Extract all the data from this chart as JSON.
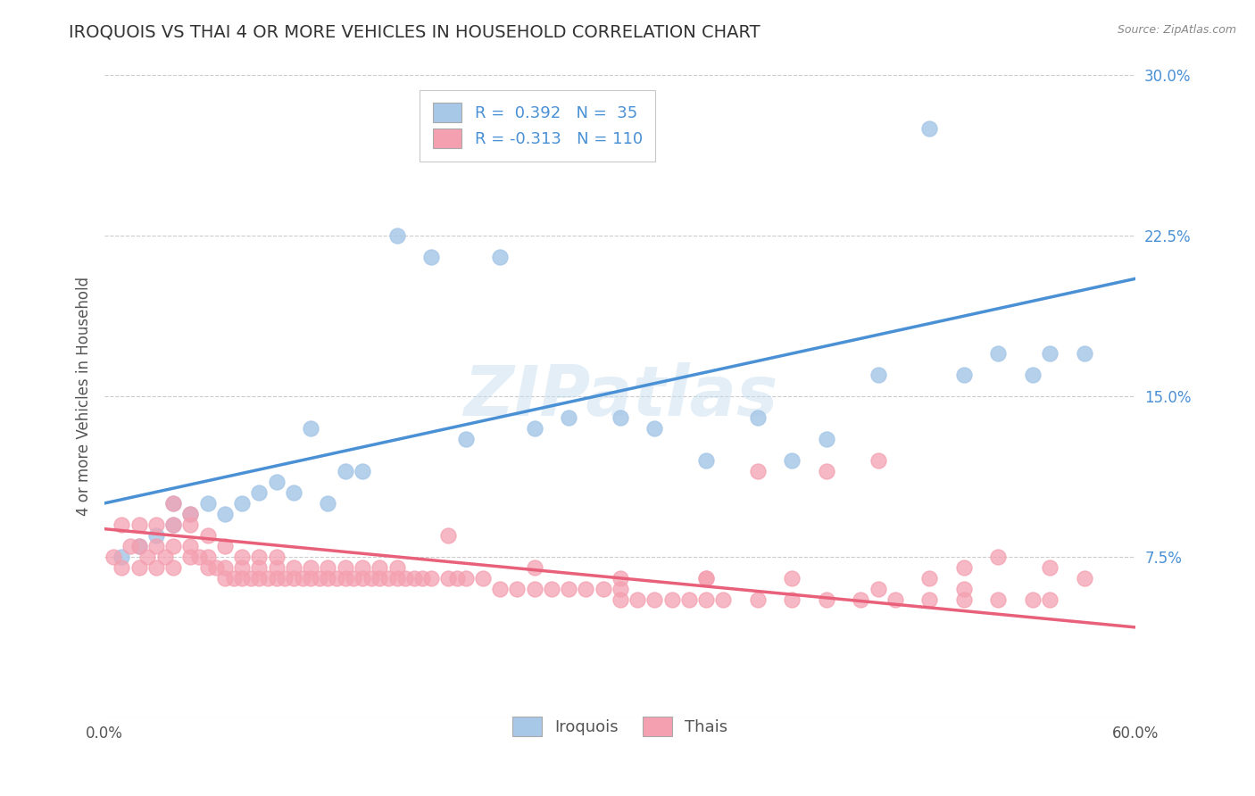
{
  "title": "IROQUOIS VS THAI 4 OR MORE VEHICLES IN HOUSEHOLD CORRELATION CHART",
  "source_text": "Source: ZipAtlas.com",
  "ylabel_text": "4 or more Vehicles in Household",
  "legend_label1": "Iroquois",
  "legend_label2": "Thais",
  "r1": 0.392,
  "n1": 35,
  "r2": -0.313,
  "n2": 110,
  "xlim": [
    0.0,
    0.6
  ],
  "ylim": [
    0.0,
    0.3
  ],
  "xticks": [
    0.0,
    0.1,
    0.2,
    0.3,
    0.4,
    0.5,
    0.6
  ],
  "yticks": [
    0.0,
    0.075,
    0.15,
    0.225,
    0.3
  ],
  "xticklabels": [
    "0.0%",
    "",
    "",
    "",
    "",
    "",
    "60.0%"
  ],
  "yticklabels_right": [
    "",
    "7.5%",
    "15.0%",
    "22.5%",
    "30.0%"
  ],
  "color_iroquois": "#a8c8e8",
  "color_thais": "#f4a0b0",
  "color_line1": "#4a90d4",
  "color_line2": "#e8607a",
  "watermark": "ZIPatlas",
  "line1_x0": 0.0,
  "line1_y0": 0.1,
  "line1_x1": 0.6,
  "line1_y1": 0.205,
  "line2_x0": 0.0,
  "line2_y0": 0.088,
  "line2_x1": 0.6,
  "line2_y1": 0.042,
  "iro_x": [
    0.01,
    0.02,
    0.03,
    0.04,
    0.04,
    0.05,
    0.06,
    0.07,
    0.08,
    0.09,
    0.1,
    0.11,
    0.12,
    0.13,
    0.14,
    0.15,
    0.17,
    0.19,
    0.21,
    0.23,
    0.25,
    0.27,
    0.3,
    0.32,
    0.35,
    0.38,
    0.4,
    0.42,
    0.45,
    0.48,
    0.5,
    0.52,
    0.54,
    0.55,
    0.57
  ],
  "iro_y": [
    0.075,
    0.08,
    0.085,
    0.09,
    0.1,
    0.095,
    0.1,
    0.095,
    0.1,
    0.105,
    0.11,
    0.105,
    0.135,
    0.1,
    0.115,
    0.115,
    0.225,
    0.215,
    0.13,
    0.215,
    0.135,
    0.14,
    0.14,
    0.135,
    0.12,
    0.14,
    0.12,
    0.13,
    0.16,
    0.275,
    0.16,
    0.17,
    0.16,
    0.17,
    0.17
  ],
  "thai_x": [
    0.005,
    0.01,
    0.01,
    0.015,
    0.02,
    0.02,
    0.02,
    0.025,
    0.03,
    0.03,
    0.03,
    0.035,
    0.04,
    0.04,
    0.04,
    0.04,
    0.05,
    0.05,
    0.05,
    0.05,
    0.055,
    0.06,
    0.06,
    0.06,
    0.065,
    0.07,
    0.07,
    0.07,
    0.075,
    0.08,
    0.08,
    0.08,
    0.085,
    0.09,
    0.09,
    0.09,
    0.095,
    0.1,
    0.1,
    0.1,
    0.105,
    0.11,
    0.11,
    0.115,
    0.12,
    0.12,
    0.125,
    0.13,
    0.13,
    0.135,
    0.14,
    0.14,
    0.145,
    0.15,
    0.15,
    0.155,
    0.16,
    0.16,
    0.165,
    0.17,
    0.17,
    0.175,
    0.18,
    0.185,
    0.19,
    0.2,
    0.205,
    0.21,
    0.22,
    0.23,
    0.24,
    0.25,
    0.26,
    0.27,
    0.28,
    0.29,
    0.3,
    0.31,
    0.32,
    0.33,
    0.34,
    0.35,
    0.36,
    0.38,
    0.4,
    0.42,
    0.44,
    0.46,
    0.48,
    0.5,
    0.52,
    0.54,
    0.38,
    0.42,
    0.45,
    0.48,
    0.5,
    0.52,
    0.55,
    0.57,
    0.2,
    0.25,
    0.3,
    0.35,
    0.4,
    0.45,
    0.5,
    0.55,
    0.3,
    0.35
  ],
  "thai_y": [
    0.075,
    0.07,
    0.09,
    0.08,
    0.07,
    0.08,
    0.09,
    0.075,
    0.07,
    0.08,
    0.09,
    0.075,
    0.07,
    0.08,
    0.09,
    0.1,
    0.075,
    0.08,
    0.09,
    0.095,
    0.075,
    0.07,
    0.075,
    0.085,
    0.07,
    0.065,
    0.07,
    0.08,
    0.065,
    0.065,
    0.07,
    0.075,
    0.065,
    0.065,
    0.07,
    0.075,
    0.065,
    0.065,
    0.07,
    0.075,
    0.065,
    0.065,
    0.07,
    0.065,
    0.065,
    0.07,
    0.065,
    0.065,
    0.07,
    0.065,
    0.065,
    0.07,
    0.065,
    0.065,
    0.07,
    0.065,
    0.065,
    0.07,
    0.065,
    0.065,
    0.07,
    0.065,
    0.065,
    0.065,
    0.065,
    0.065,
    0.065,
    0.065,
    0.065,
    0.06,
    0.06,
    0.06,
    0.06,
    0.06,
    0.06,
    0.06,
    0.055,
    0.055,
    0.055,
    0.055,
    0.055,
    0.055,
    0.055,
    0.055,
    0.055,
    0.055,
    0.055,
    0.055,
    0.055,
    0.055,
    0.055,
    0.055,
    0.115,
    0.115,
    0.12,
    0.065,
    0.07,
    0.075,
    0.07,
    0.065,
    0.085,
    0.07,
    0.065,
    0.065,
    0.065,
    0.06,
    0.06,
    0.055,
    0.06,
    0.065
  ]
}
